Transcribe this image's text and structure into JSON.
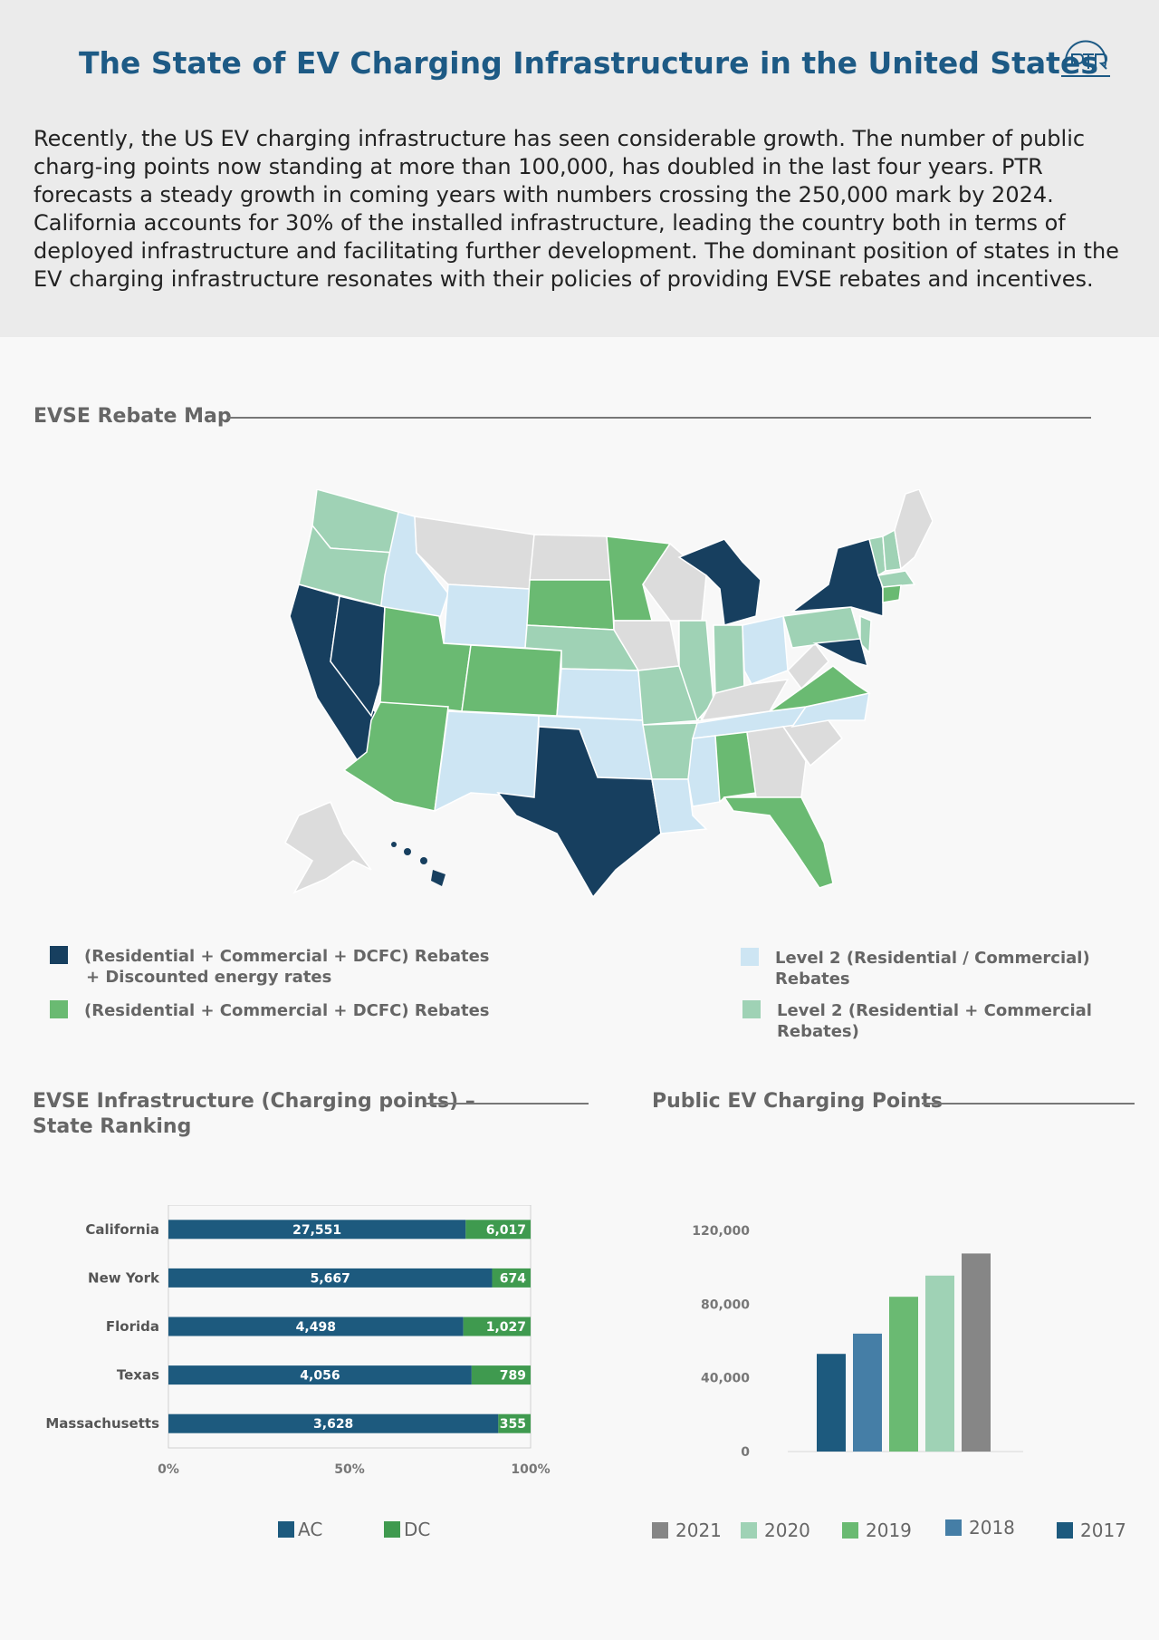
{
  "header": {
    "title": "The State of EV Charging Infrastructure in the United States",
    "logo_text": "PTR",
    "intro": "Recently, the US EV charging infrastructure has seen considerable growth. The number of public charg-ing points now standing at more than 100,000, has doubled in the last four years. PTR forecasts a steady growth in coming years with numbers crossing the 250,000 mark by 2024. California accounts for 30% of the installed infrastructure,  leading the country both in terms of deployed infrastructure and facilitating further development. The dominant position of states in the EV charging infrastructure resonates with their policies of providing EVSE rebates and incentives."
  },
  "map_section": {
    "title": "EVSE Rebate Map",
    "colors": {
      "dark": "#173f5f",
      "green": "#6aba72",
      "light_blue": "#cde5f3",
      "mint": "#9fd2b5",
      "gray": "#dcdcdc"
    },
    "legend": [
      {
        "key": "dark",
        "line1": "(Residential + Commercial + DCFC) Rebates",
        "line2": "+ Discounted energy rates"
      },
      {
        "key": "light_blue",
        "line1": "Level 2 (Residential / Commercial) Rebates"
      },
      {
        "key": "green",
        "line1": "(Residential + Commercial + DCFC) Rebates"
      },
      {
        "key": "mint",
        "line1": "Level 2 (Residential + Commercial Rebates)"
      }
    ]
  },
  "ranking_section": {
    "title_line1": "EVSE Infrastructure (Charging points) –",
    "title_line2": "State Ranking"
  },
  "public_section": {
    "title": "Public EV Charging Points"
  },
  "chart_data": [
    {
      "type": "bar",
      "orientation": "horizontal",
      "stacked": "percent",
      "categories": [
        "California",
        "New York",
        "Florida",
        "Texas",
        "Massachusetts"
      ],
      "series": [
        {
          "name": "AC",
          "color": "#1d5a7e",
          "values": [
            27551,
            5667,
            4498,
            4056,
            3628
          ],
          "labels": [
            "27,551",
            "5,667",
            "4,498",
            "4,056",
            "3,628"
          ]
        },
        {
          "name": "DC",
          "color": "#3f9a4f",
          "values": [
            6017,
            674,
            1027,
            789,
            355
          ],
          "labels": [
            "6,017",
            "674",
            "1,027",
            "789",
            "355"
          ]
        }
      ],
      "xticks": [
        "0%",
        "50%",
        "100%"
      ],
      "xlim": [
        0,
        100
      ],
      "legend_position": "bottom"
    },
    {
      "type": "bar",
      "categories": [
        "2017",
        "2018",
        "2019",
        "2020",
        "2021"
      ],
      "values": [
        53000,
        64000,
        84000,
        95500,
        107500
      ],
      "colors": [
        "#1d5a7e",
        "#457ea6",
        "#6aba72",
        "#9fd2b5",
        "#868686"
      ],
      "yticks": [
        "0",
        "40,000",
        "80,000",
        "120,000"
      ],
      "ylim": [
        0,
        120000
      ],
      "legend": [
        "2021",
        "2020",
        "2019",
        "2018",
        "2017"
      ],
      "legend_position": "bottom"
    }
  ]
}
